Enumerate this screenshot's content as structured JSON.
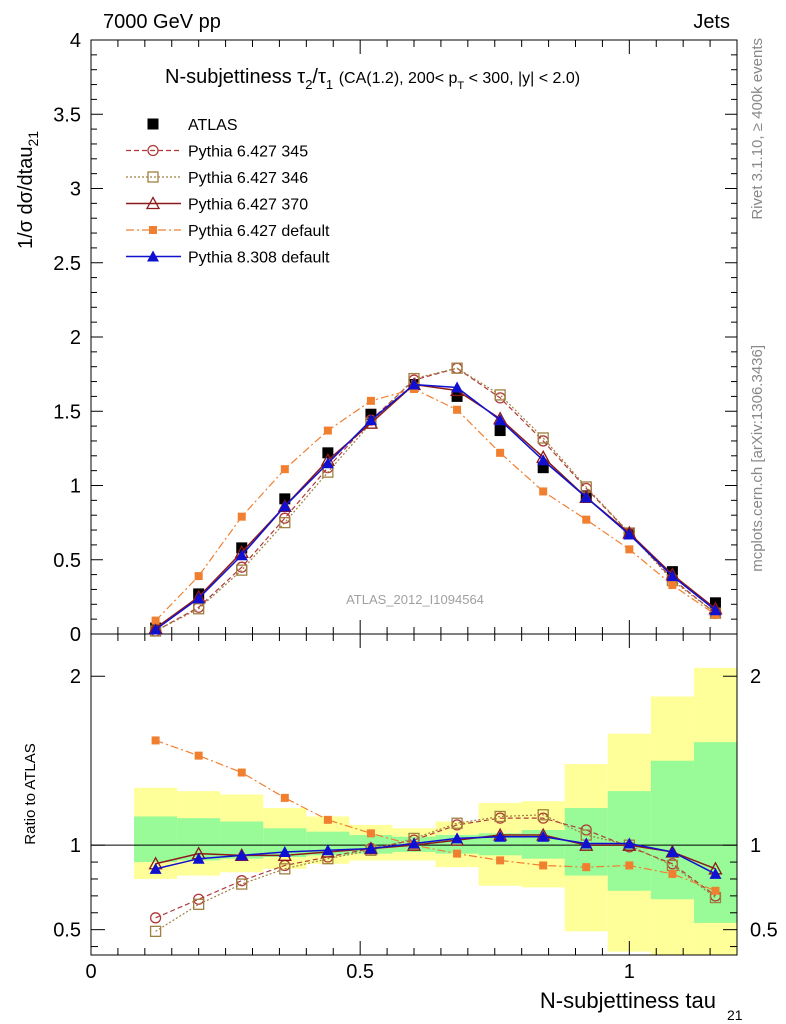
{
  "header": {
    "left": "7000 GeV pp",
    "right": "Jets"
  },
  "side_text": {
    "rivet": "Rivet 3.1.10, ≥ 400k events",
    "mcplots": "mcplots.cern.ch [arXiv:1306.3436]"
  },
  "watermark": "ATLAS_2012_I1094564",
  "colors": {
    "atlas": "#000000",
    "p345": "#b03a3a",
    "p346": "#a08040",
    "p370": "#8b1a1a",
    "p6def": "#f07f30",
    "p8def": "#1010d0",
    "band_inner": "#98fb98",
    "band_outer": "#ffff99"
  },
  "chart_data": [
    {
      "type": "line",
      "title_main": "N-subjettiness",
      "title_cut": "(CA(1.2), 200< p_T < 300, |y| < 2.0)",
      "ylabel": "1/σ dσ/dtau_21",
      "ylim": [
        0,
        4
      ],
      "yticks": [
        "0",
        "0.5",
        "1",
        "1.5",
        "2",
        "2.5",
        "3",
        "3.5",
        "4"
      ],
      "ytick_values": [
        0,
        0.5,
        1,
        1.5,
        2,
        2.5,
        3,
        3.5,
        4
      ],
      "xlim": [
        0,
        1.2
      ],
      "legend_position": "top-left",
      "x": [
        0.12,
        0.2,
        0.28,
        0.36,
        0.44,
        0.52,
        0.6,
        0.68,
        0.76,
        0.84,
        0.92,
        1.0,
        1.08,
        1.16
      ],
      "series": [
        {
          "name": "ATLAS",
          "key": "atlas",
          "values": [
            0.04,
            0.27,
            0.58,
            0.91,
            1.22,
            1.48,
            1.68,
            1.6,
            1.37,
            1.12,
            0.93,
            0.68,
            0.42,
            0.21
          ]
        },
        {
          "name": "Pythia 6.427 345",
          "key": "p345",
          "values": [
            0.02,
            0.18,
            0.45,
            0.78,
            1.12,
            1.44,
            1.71,
            1.79,
            1.59,
            1.3,
            0.98,
            0.68,
            0.37,
            0.14
          ]
        },
        {
          "name": "Pythia 6.427 346",
          "key": "p346",
          "values": [
            0.02,
            0.17,
            0.43,
            0.75,
            1.09,
            1.42,
            1.72,
            1.79,
            1.61,
            1.32,
            0.99,
            0.68,
            0.36,
            0.14
          ]
        },
        {
          "name": "Pythia 6.427 370",
          "key": "p370",
          "values": [
            0.04,
            0.25,
            0.55,
            0.86,
            1.17,
            1.42,
            1.68,
            1.64,
            1.45,
            1.19,
            0.92,
            0.68,
            0.4,
            0.17
          ]
        },
        {
          "name": "Pythia 6.427 default",
          "key": "p6def",
          "values": [
            0.09,
            0.39,
            0.79,
            1.11,
            1.37,
            1.57,
            1.65,
            1.51,
            1.22,
            0.96,
            0.77,
            0.57,
            0.33,
            0.13
          ]
        },
        {
          "name": "Pythia 8.308 default",
          "key": "p8def",
          "values": [
            0.03,
            0.24,
            0.53,
            0.86,
            1.15,
            1.44,
            1.68,
            1.66,
            1.44,
            1.17,
            0.92,
            0.67,
            0.39,
            0.16
          ]
        }
      ]
    },
    {
      "type": "line",
      "ylabel": "Ratio to ATLAS",
      "xlabel": "N-subjettiness tau_21",
      "ylim": [
        0.35,
        2.25
      ],
      "xlim": [
        0,
        1.2
      ],
      "yticks": [
        "0.5",
        "1",
        "2"
      ],
      "ytick_values": [
        0.5,
        1,
        2
      ],
      "xticks": [
        "0",
        "0.5",
        "1"
      ],
      "xtick_values": [
        0,
        0.5,
        1
      ],
      "bin_edges": [
        0.08,
        0.16,
        0.24,
        0.32,
        0.4,
        0.48,
        0.56,
        0.64,
        0.72,
        0.8,
        0.88,
        0.96,
        1.04,
        1.12,
        1.2
      ],
      "band_outer": [
        [
          0.8,
          1.34
        ],
        [
          0.82,
          1.32
        ],
        [
          0.84,
          1.3
        ],
        [
          0.86,
          1.22
        ],
        [
          0.89,
          1.17
        ],
        [
          0.91,
          1.12
        ],
        [
          0.91,
          1.1
        ],
        [
          0.87,
          1.14
        ],
        [
          0.76,
          1.25
        ],
        [
          0.75,
          1.26
        ],
        [
          0.49,
          1.48
        ],
        [
          0.37,
          1.66
        ],
        [
          0.35,
          1.88
        ],
        [
          0.35,
          2.05
        ]
      ],
      "band_inner": [
        [
          0.9,
          1.17
        ],
        [
          0.91,
          1.16
        ],
        [
          0.92,
          1.14
        ],
        [
          0.93,
          1.1
        ],
        [
          0.94,
          1.08
        ],
        [
          0.95,
          1.06
        ],
        [
          0.96,
          1.05
        ],
        [
          0.95,
          1.06
        ],
        [
          0.94,
          1.07
        ],
        [
          0.92,
          1.09
        ],
        [
          0.82,
          1.22
        ],
        [
          0.73,
          1.32
        ],
        [
          0.68,
          1.5
        ],
        [
          0.54,
          1.61
        ]
      ],
      "series": [
        {
          "name": "Pythia 6.427 345",
          "key": "p345",
          "values": [
            0.57,
            0.68,
            0.79,
            0.88,
            0.93,
            0.98,
            1.03,
            1.12,
            1.16,
            1.16,
            1.09,
            0.99,
            0.89,
            0.7
          ]
        },
        {
          "name": "Pythia 6.427 346",
          "key": "p346",
          "values": [
            0.49,
            0.65,
            0.77,
            0.86,
            0.92,
            0.97,
            1.04,
            1.13,
            1.17,
            1.18,
            1.06,
            1.0,
            0.88,
            0.69
          ]
        },
        {
          "name": "Pythia 6.427 370",
          "key": "p370",
          "values": [
            0.89,
            0.95,
            0.94,
            0.94,
            0.96,
            0.98,
            1.0,
            1.03,
            1.06,
            1.06,
            1.0,
            1.0,
            0.96,
            0.86
          ]
        },
        {
          "name": "Pythia 6.427 default",
          "key": "p6def",
          "values": [
            1.62,
            1.53,
            1.43,
            1.28,
            1.15,
            1.07,
            1.0,
            0.95,
            0.91,
            0.88,
            0.87,
            0.88,
            0.83,
            0.73
          ]
        },
        {
          "name": "Pythia 8.308 default",
          "key": "p8def",
          "values": [
            0.86,
            0.92,
            0.94,
            0.96,
            0.97,
            0.98,
            1.01,
            1.04,
            1.05,
            1.05,
            1.01,
            1.01,
            0.96,
            0.83
          ]
        }
      ]
    }
  ]
}
